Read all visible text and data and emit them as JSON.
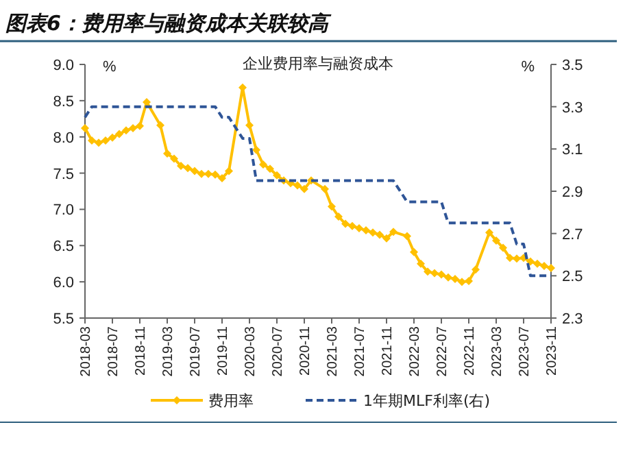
{
  "chart_data": {
    "type": "line",
    "title": "图表6：费用率与融资成本关联较高",
    "subtitle": "企业费用率与融资成本",
    "ylabel": "%",
    "y2label": "%",
    "x": [
      "2018-03",
      "2018-04",
      "2018-05",
      "2018-06",
      "2018-07",
      "2018-08",
      "2018-09",
      "2018-10",
      "2018-11",
      "2018-12",
      "2019-02",
      "2019-03",
      "2019-04",
      "2019-05",
      "2019-06",
      "2019-07",
      "2019-08",
      "2019-09",
      "2019-10",
      "2019-11",
      "2019-12",
      "2020-02",
      "2020-03",
      "2020-04",
      "2020-05",
      "2020-06",
      "2020-07",
      "2020-08",
      "2020-09",
      "2020-10",
      "2020-11",
      "2020-12",
      "2021-02",
      "2021-03",
      "2021-04",
      "2021-05",
      "2021-06",
      "2021-07",
      "2021-08",
      "2021-09",
      "2021-10",
      "2021-11",
      "2021-12",
      "2022-02",
      "2022-03",
      "2022-04",
      "2022-05",
      "2022-06",
      "2022-07",
      "2022-08",
      "2022-09",
      "2022-10",
      "2022-11",
      "2022-12",
      "2023-02",
      "2023-03",
      "2023-04",
      "2023-05",
      "2023-06",
      "2023-07",
      "2023-08",
      "2023-09",
      "2023-10",
      "2023-11"
    ],
    "series": [
      {
        "name": "费用率",
        "color": "#ffc000",
        "marker": "diamond",
        "line_style": "solid",
        "values": [
          8.12,
          7.95,
          7.92,
          7.95,
          7.99,
          8.04,
          8.09,
          8.12,
          8.15,
          8.48,
          8.16,
          7.77,
          7.7,
          7.6,
          7.57,
          7.53,
          7.49,
          7.49,
          7.48,
          7.43,
          7.53,
          8.68,
          8.16,
          7.82,
          7.62,
          7.56,
          7.47,
          7.4,
          7.36,
          7.33,
          7.28,
          7.4,
          7.28,
          7.04,
          6.9,
          6.8,
          6.77,
          6.74,
          6.71,
          6.68,
          6.65,
          6.6,
          6.69,
          6.63,
          6.41,
          6.25,
          6.14,
          6.12,
          6.1,
          6.06,
          6.04,
          6.0,
          6.01,
          6.17,
          6.68,
          6.57,
          6.47,
          6.33,
          6.32,
          6.33,
          6.28,
          6.25,
          6.22,
          6.19
        ]
      },
      {
        "name": "1年期MLF利率(右)",
        "color": "#2f5597",
        "marker": "none",
        "line_style": "dashed",
        "axis": "y2",
        "values": [
          3.25,
          3.3,
          3.3,
          3.3,
          3.3,
          3.3,
          3.3,
          3.3,
          3.3,
          3.3,
          3.3,
          3.3,
          3.3,
          3.3,
          3.3,
          3.3,
          3.3,
          3.3,
          3.3,
          3.25,
          3.25,
          3.15,
          3.15,
          2.95,
          2.95,
          2.95,
          2.95,
          2.95,
          2.95,
          2.95,
          2.95,
          2.95,
          2.95,
          2.95,
          2.95,
          2.95,
          2.95,
          2.95,
          2.95,
          2.95,
          2.95,
          2.95,
          2.95,
          2.85,
          2.85,
          2.85,
          2.85,
          2.85,
          2.85,
          2.75,
          2.75,
          2.75,
          2.75,
          2.75,
          2.75,
          2.75,
          2.75,
          2.75,
          2.65,
          2.65,
          2.5,
          2.5,
          2.5,
          2.5
        ]
      }
    ],
    "xlim": [
      "2018-03",
      "2023-11"
    ],
    "xticks": [
      "2018-03",
      "2018-07",
      "2018-11",
      "2019-03",
      "2019-07",
      "2019-11",
      "2020-03",
      "2020-07",
      "2020-11",
      "2021-03",
      "2021-07",
      "2021-11",
      "2022-03",
      "2022-07",
      "2022-11",
      "2023-03",
      "2023-07",
      "2023-11"
    ],
    "ylim": [
      5.5,
      9.0
    ],
    "yticks": [
      {
        "value": 5.5,
        "label": "5.5"
      },
      {
        "value": 6,
        "label": "6.0"
      },
      {
        "value": 6.5,
        "label": "6.5"
      },
      {
        "value": 7,
        "label": "7.0"
      },
      {
        "value": 7.5,
        "label": "7.5"
      },
      {
        "value": 8,
        "label": "8.0"
      },
      {
        "value": 8.5,
        "label": "8.5"
      },
      {
        "value": 9,
        "label": "9.0"
      }
    ],
    "y2lim": [
      2.3,
      3.5
    ],
    "y2ticks": [
      2.3,
      2.5,
      2.7,
      2.9,
      3.1,
      3.3,
      3.5
    ],
    "grid": false,
    "legend": "bottom"
  }
}
